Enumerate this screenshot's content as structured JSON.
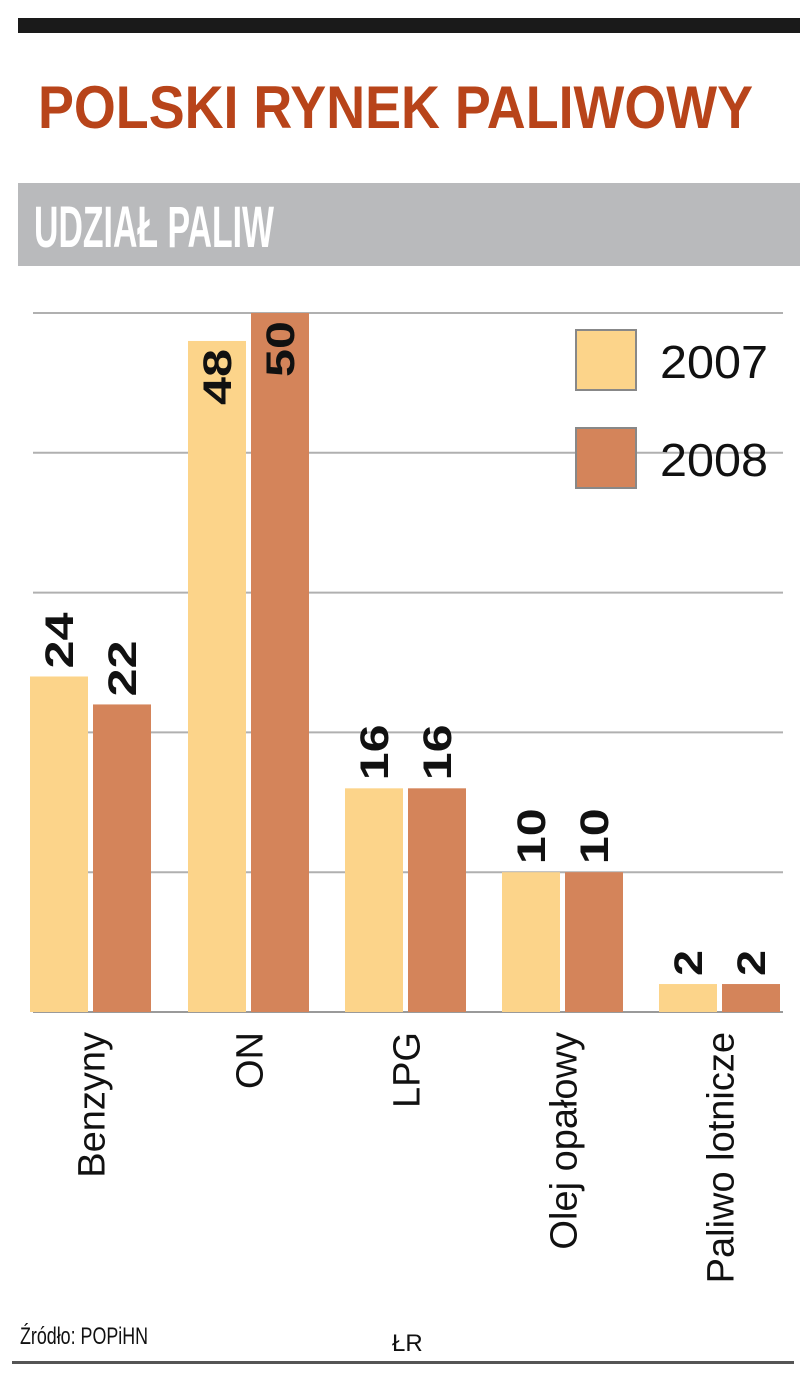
{
  "chart_data": {
    "type": "bar",
    "title": "POLSKI RYNEK PALIWOWY",
    "subtitle": "UDZIAŁ PALIW",
    "categories": [
      "Benzyny",
      "ON",
      "LPG",
      "Olej opałowy",
      "Paliwo lotnicze"
    ],
    "series": [
      {
        "name": "2007",
        "values": [
          24,
          48,
          16,
          10,
          2
        ],
        "color": "#fcd48a"
      },
      {
        "name": "2008",
        "values": [
          22,
          50,
          16,
          10,
          2
        ],
        "color": "#d4845a"
      }
    ],
    "ylim": [
      0,
      50
    ],
    "grid": true,
    "gridlines": [
      0,
      10,
      20,
      30,
      40,
      50
    ],
    "legend_position": "top-right",
    "source": "Źródło: POPiHN",
    "author": "ŁR",
    "colors": {
      "title": "#b8441a",
      "subtitle_band": "#b9babc",
      "subtitle_text": "#ffffff",
      "top_rule": "#1a1a1a"
    }
  }
}
